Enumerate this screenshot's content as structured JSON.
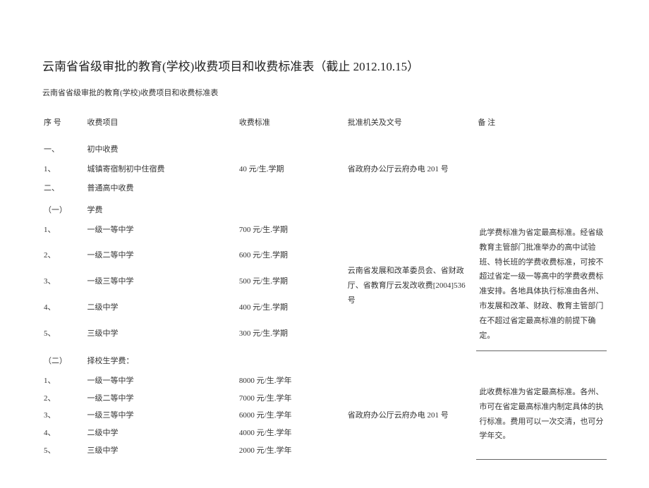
{
  "title": "云南省省级审批的教育(学校)收费项目和收费标准表（截止 2012.10.15）",
  "subtitle": "云南省省级审批的教育(学校)收费项目和收费标准表",
  "headers": {
    "idx": "序 号",
    "item": "收费项目",
    "std": "收费标准",
    "auth": "批准机关及文号",
    "note": "备 注"
  },
  "sec1": {
    "idx": "一、",
    "label": "初中收费"
  },
  "row1": {
    "idx": "1、",
    "item": "城镇寄宿制初中住宿费",
    "std": "40 元/生.学期",
    "auth": "省政府办公厅云府办电 201 号"
  },
  "sec2": {
    "idx": "二、",
    "label": "普通高中收费"
  },
  "sec2a": {
    "idx": "（一）",
    "label": "学费"
  },
  "g1": {
    "r1": {
      "idx": "1、",
      "item": "一级一等中学",
      "std": "700 元/生.学期"
    },
    "r2": {
      "idx": "2、",
      "item": "一级二等中学",
      "std": "600 元/生.学期"
    },
    "r3": {
      "idx": "3、",
      "item": "一级三等中学",
      "std": "500 元/生.学期"
    },
    "r4": {
      "idx": "4、",
      "item": "二级中学",
      "std": "400 元/生.学期"
    },
    "r5": {
      "idx": "5、",
      "item": "三级中学",
      "std": "300 元/生.学期"
    },
    "auth": "云南省发展和改革委员会、省财政厅、省教育厅云发改收费[2004]536 号",
    "note": "此学费标准为省定最高标准。经省级教育主管部门批准举办的高中试验班、特长班的学费收费标准，可按不超过省定一级一等高中的学费收费标准安排。各地具体执行标准由各州、市发展和改革、财政、教育主管部门在不超过省定最高标准的前提下确定。"
  },
  "sec2b": {
    "idx": "（二）",
    "label": "择校生学费："
  },
  "g2": {
    "r1": {
      "idx": "1、",
      "item": "一级一等中学",
      "std": "8000 元/生.学年"
    },
    "r2": {
      "idx": "2、",
      "item": "一级二等中学",
      "std": "7000 元/生.学年"
    },
    "r3": {
      "idx": "3、",
      "item": "一级三等中学",
      "std": "6000 元/生.学年"
    },
    "r4": {
      "idx": "4、",
      "item": "二级中学",
      "std": "4000 元/生.学年"
    },
    "r5": {
      "idx": "5、",
      "item": "三级中学",
      "std": "2000 元/生.学年"
    },
    "auth": "省政府办公厅云府办电 201 号",
    "note": "此收费标准为省定最高标准。各州、市可在省定最高标准内制定具体的执行标准。费用可以一次交清，也可分学年交。"
  }
}
